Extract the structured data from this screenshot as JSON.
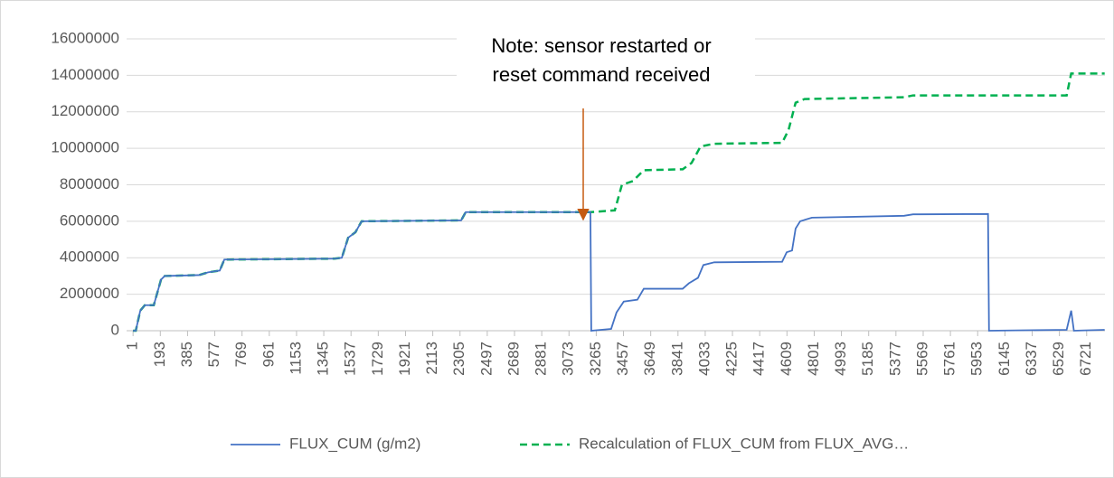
{
  "chart_data": {
    "type": "line",
    "annotation": [
      "Note: sensor restarted or",
      "reset command received"
    ],
    "xlim": [
      0,
      6850
    ],
    "xticks": [
      1,
      193,
      385,
      577,
      769,
      961,
      1153,
      1345,
      1537,
      1729,
      1921,
      2113,
      2305,
      2497,
      2689,
      2881,
      3073,
      3265,
      3457,
      3649,
      3841,
      4033,
      4225,
      4417,
      4609,
      4801,
      4993,
      5185,
      5377,
      5569,
      5761,
      5953,
      6145,
      6337,
      6529,
      6721
    ],
    "ylim": [
      0,
      16000000
    ],
    "yticks": [
      0,
      2000000,
      4000000,
      6000000,
      8000000,
      10000000,
      12000000,
      14000000,
      16000000
    ],
    "grid": true,
    "legend": "bottom",
    "series": [
      {
        "name": "FLUX_CUM (g/m2)",
        "color": "#4472c4",
        "dash": false,
        "x": [
          1,
          20,
          52,
          84,
          147,
          198,
          224,
          466,
          530,
          612,
          644,
          1421,
          1472,
          1517,
          1568,
          1612,
          2313,
          2345,
          3224,
          3230,
          3370,
          3408,
          3459,
          3555,
          3600,
          3874,
          3918,
          3982,
          4020,
          4097,
          4575,
          4607,
          4645,
          4670,
          4702,
          4785,
          5434,
          5498,
          6026,
          6033,
          6580,
          6612,
          6631,
          6708,
          6848
        ],
        "values": [
          0,
          0,
          1100000,
          1400000,
          1400000,
          2800000,
          3000000,
          3050000,
          3200000,
          3300000,
          3900000,
          3950000,
          4000000,
          5100000,
          5400000,
          6000000,
          6050000,
          6500000,
          6500000,
          0,
          100000,
          1000000,
          1600000,
          1700000,
          2300000,
          2300000,
          2600000,
          2900000,
          3600000,
          3750000,
          3780000,
          4300000,
          4400000,
          5600000,
          6000000,
          6200000,
          6300000,
          6380000,
          6400000,
          0,
          50000,
          1100000,
          0,
          20000,
          50000
        ]
      },
      {
        "name": "Recalculation of FLUX_CUM from FLUX_AVG…",
        "color": "#00b050",
        "dash": true,
        "x": [
          1,
          20,
          52,
          84,
          147,
          198,
          224,
          466,
          530,
          612,
          644,
          1421,
          1472,
          1517,
          1568,
          1612,
          2313,
          2345,
          3224,
          3396,
          3446,
          3523,
          3600,
          3874,
          3937,
          4000,
          4097,
          4575,
          4620,
          4670,
          4733,
          5434,
          5498,
          6580,
          6612,
          6848
        ],
        "values": [
          0,
          0,
          1100000,
          1400000,
          1400000,
          2800000,
          3000000,
          3050000,
          3200000,
          3300000,
          3900000,
          3950000,
          4000000,
          5100000,
          5400000,
          6000000,
          6050000,
          6500000,
          6500000,
          6600000,
          8000000,
          8200000,
          8800000,
          8850000,
          9200000,
          10100000,
          10250000,
          10300000,
          11000000,
          12500000,
          12700000,
          12800000,
          12900000,
          12900000,
          14100000,
          14100000
        ]
      }
    ]
  }
}
